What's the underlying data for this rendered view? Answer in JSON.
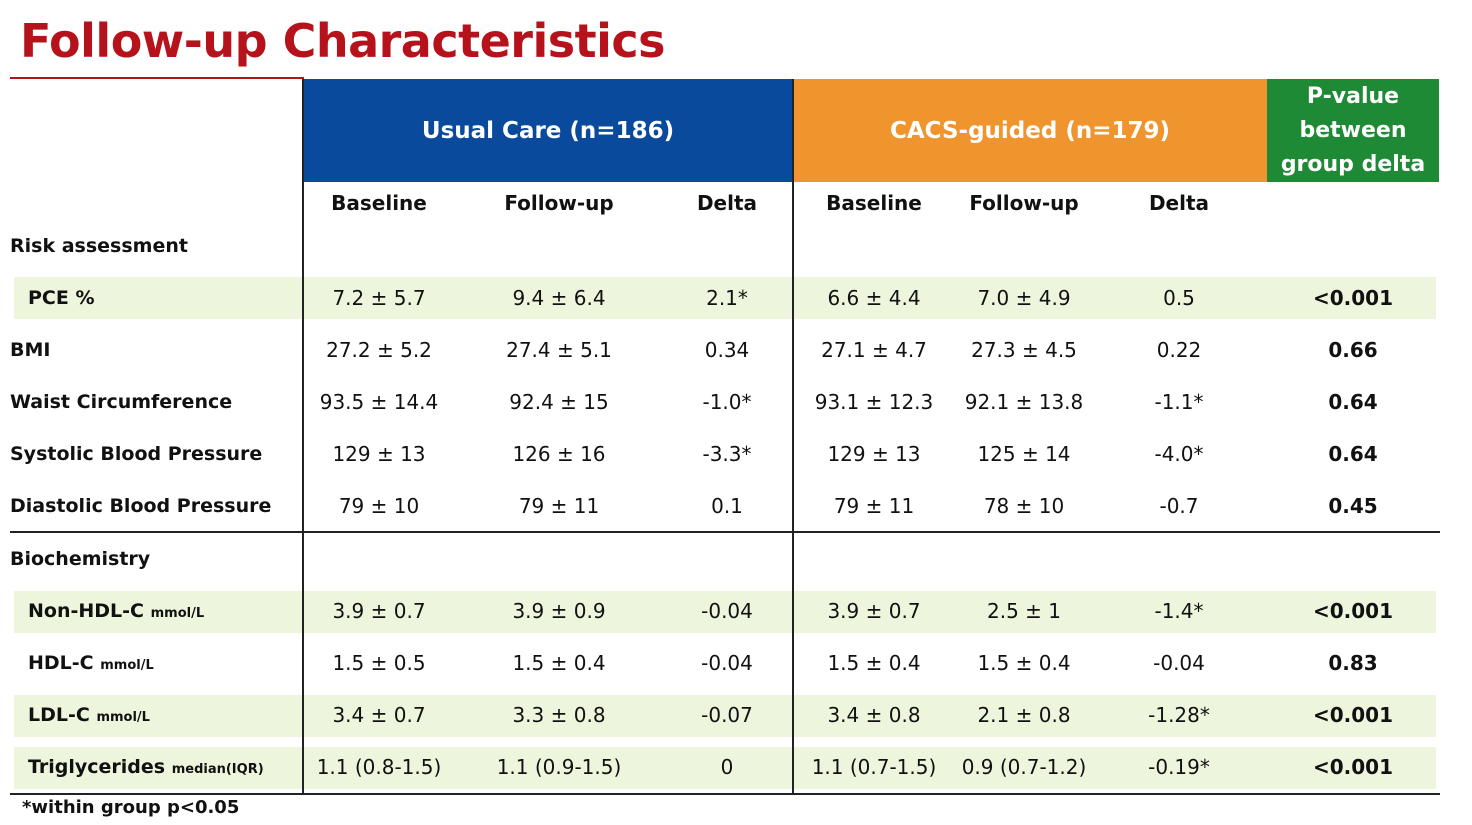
{
  "title": "Follow-up Characteristics",
  "groups": {
    "usual_care": "Usual Care (n=186)",
    "cacs_guided": "CACS-guided (n=179)",
    "p_value_lines": [
      "P-value",
      "between",
      "group delta"
    ]
  },
  "subheaders": {
    "baseline": "Baseline",
    "followup": "Follow-up",
    "delta": "Delta"
  },
  "sections": {
    "risk": "Risk assessment",
    "biochem": "Biochemistry"
  },
  "rows": [
    {
      "label": "PCE %",
      "unit": "",
      "uc_base": "7.2 ± 5.7",
      "uc_fu": "9.4 ± 6.4",
      "uc_delta": "2.1*",
      "cg_base": "6.6 ± 4.4",
      "cg_fu": "7.0 ± 4.9",
      "cg_delta": "0.5",
      "p": "<0.001"
    },
    {
      "label": "BMI",
      "unit": "",
      "uc_base": "27.2 ± 5.2",
      "uc_fu": "27.4 ± 5.1",
      "uc_delta": "0.34",
      "cg_base": "27.1 ± 4.7",
      "cg_fu": "27.3 ± 4.5",
      "cg_delta": "0.22",
      "p": "0.66"
    },
    {
      "label": "Waist Circumference",
      "unit": "",
      "uc_base": "93.5 ± 14.4",
      "uc_fu": "92.4 ± 15",
      "uc_delta": "-1.0*",
      "cg_base": "93.1 ± 12.3",
      "cg_fu": "92.1 ± 13.8",
      "cg_delta": "-1.1*",
      "p": "0.64"
    },
    {
      "label": "Systolic Blood Pressure",
      "unit": "",
      "uc_base": "129 ± 13",
      "uc_fu": "126 ± 16",
      "uc_delta": "-3.3*",
      "cg_base": "129 ± 13",
      "cg_fu": "125 ± 14",
      "cg_delta": "-4.0*",
      "p": "0.64"
    },
    {
      "label": "Diastolic Blood Pressure",
      "unit": "",
      "uc_base": "79 ± 10",
      "uc_fu": "79 ± 11",
      "uc_delta": "0.1",
      "cg_base": "79 ± 11",
      "cg_fu": "78 ± 10",
      "cg_delta": "-0.7",
      "p": "0.45"
    },
    {
      "label": "Non-HDL-C",
      "unit": "mmol/L",
      "uc_base": "3.9 ± 0.7",
      "uc_fu": "3.9 ± 0.9",
      "uc_delta": "-0.04",
      "cg_base": "3.9 ± 0.7",
      "cg_fu": "2.5 ± 1",
      "cg_delta": "-1.4*",
      "p": "<0.001"
    },
    {
      "label": "HDL-C",
      "unit": "mmol/L",
      "uc_base": "1.5 ± 0.5",
      "uc_fu": "1.5 ± 0.4",
      "uc_delta": "-0.04",
      "cg_base": "1.5 ± 0.4",
      "cg_fu": "1.5 ± 0.4",
      "cg_delta": "-0.04",
      "p": "0.83"
    },
    {
      "label": "LDL-C",
      "unit": "mmol/L",
      "uc_base": "3.4 ± 0.7",
      "uc_fu": "3.3 ± 0.8",
      "uc_delta": "-0.07",
      "cg_base": "3.4 ± 0.8",
      "cg_fu": "2.1 ± 0.8",
      "cg_delta": "-1.28*",
      "p": "<0.001"
    },
    {
      "label": "Triglycerides",
      "unit": "median(IQR)",
      "uc_base": "1.1 (0.8-1.5)",
      "uc_fu": "1.1 (0.9-1.5)",
      "uc_delta": "0",
      "cg_base": "1.1 (0.7-1.5)",
      "cg_fu": "0.9 (0.7-1.2)",
      "cg_delta": "-0.19*",
      "p": "<0.001"
    }
  ],
  "footnote": "*within group p<0.05",
  "colors": {
    "title": "#b5121b",
    "usual_care_header": "#0a4a9c",
    "cacs_header": "#f0952e",
    "pvalue_header": "#1e8a35",
    "highlight_row": "#edf5dc"
  }
}
